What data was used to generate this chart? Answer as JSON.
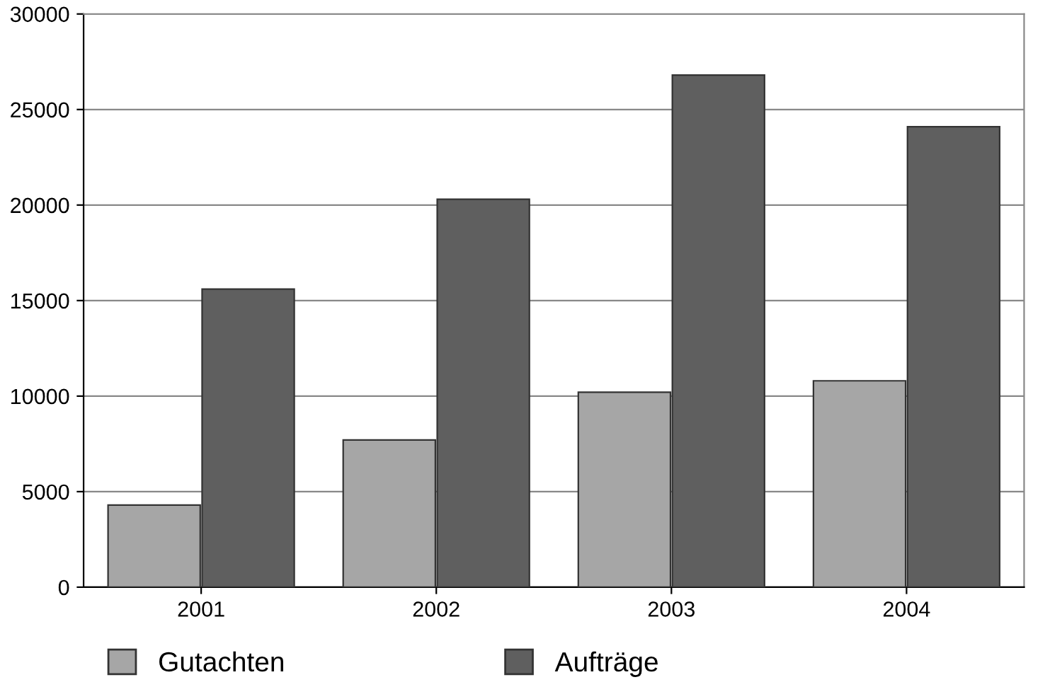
{
  "chart_data": {
    "type": "bar",
    "categories": [
      "2001",
      "2002",
      "2003",
      "2004"
    ],
    "series": [
      {
        "name": "Gutachten",
        "color": "#a6a6a6",
        "values": [
          4300,
          7700,
          10200,
          10800
        ]
      },
      {
        "name": "Aufträge",
        "color": "#5f5f5f",
        "values": [
          15600,
          20300,
          26800,
          24100
        ]
      }
    ],
    "ylim": [
      0,
      30000
    ],
    "yticks": [
      0,
      5000,
      10000,
      15000,
      20000,
      25000,
      30000
    ],
    "grid": "y",
    "legend": "bottom left"
  }
}
